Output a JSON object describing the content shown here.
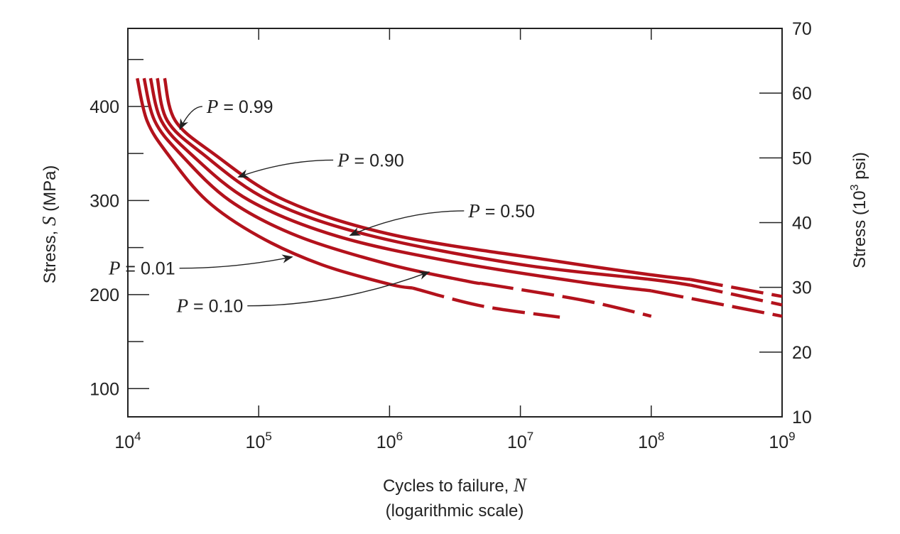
{
  "chart_data": {
    "type": "line",
    "title": "",
    "xlabel": "Cycles to failure, ",
    "xlabel_var": "N",
    "xlabel_note": "(logarithmic scale)",
    "ylabel": "Stress, ",
    "ylabel_var": "S",
    "ylabel_unit": " (MPa)",
    "y2label": "Stress (10",
    "y2label_exp": "3",
    "y2label_unit": " psi)",
    "xscale": "log",
    "xlim": [
      10000,
      1000000000
    ],
    "ylim": [
      70,
      483
    ],
    "y2lim": [
      10,
      70
    ],
    "x_ticks": [
      {
        "base": "10",
        "exp": "4",
        "value": 10000
      },
      {
        "base": "10",
        "exp": "5",
        "value": 100000
      },
      {
        "base": "10",
        "exp": "6",
        "value": 1000000
      },
      {
        "base": "10",
        "exp": "7",
        "value": 10000000
      },
      {
        "base": "10",
        "exp": "8",
        "value": 100000000
      },
      {
        "base": "10",
        "exp": "9",
        "value": 1000000000
      }
    ],
    "y_ticks": [
      "100",
      "200",
      "300",
      "400"
    ],
    "y_tick_values": [
      100,
      200,
      300,
      400
    ],
    "y_minor_ticks": [
      150,
      250,
      350,
      450
    ],
    "y2_ticks": [
      "10",
      "20",
      "30",
      "40",
      "50",
      "60",
      "70"
    ],
    "y2_tick_values": [
      10,
      20,
      30,
      40,
      50,
      60,
      70
    ],
    "series_color": "#b3121c",
    "series": [
      {
        "name": "P = 0.01",
        "prob": "0.01",
        "points": [
          [
            11800,
            430
          ],
          [
            14000,
            385
          ],
          [
            20000,
            350
          ],
          [
            40000,
            300
          ],
          [
            100000,
            262
          ],
          [
            300000,
            232
          ],
          [
            1000000,
            211
          ],
          [
            1500000,
            207
          ]
        ],
        "dashed": [
          [
            1500000,
            207
          ],
          [
            5000000,
            188
          ],
          [
            20000000,
            176
          ]
        ]
      },
      {
        "name": "P = 0.10",
        "prob": "0.10",
        "points": [
          [
            13300,
            430
          ],
          [
            16000,
            385
          ],
          [
            25000,
            350
          ],
          [
            60000,
            300
          ],
          [
            200000,
            262
          ],
          [
            1000000,
            232
          ],
          [
            4000000,
            214
          ],
          [
            5000000,
            212
          ]
        ],
        "dashed": [
          [
            5000000,
            212
          ],
          [
            30000000,
            194
          ],
          [
            100000000,
            177
          ]
        ]
      },
      {
        "name": "P = 0.50",
        "prob": "0.50",
        "points": [
          [
            14900,
            430
          ],
          [
            18000,
            385
          ],
          [
            30000,
            350
          ],
          [
            85000,
            300
          ],
          [
            400000,
            262
          ],
          [
            3000000,
            235
          ],
          [
            30000000,
            213
          ],
          [
            100000000,
            204
          ]
        ],
        "dashed": [
          [
            100000000,
            204
          ],
          [
            1000000000,
            177
          ]
        ]
      },
      {
        "name": "P = 0.90",
        "prob": "0.90",
        "points": [
          [
            16800,
            430
          ],
          [
            20000,
            385
          ],
          [
            37000,
            350
          ],
          [
            120000,
            300
          ],
          [
            700000,
            263
          ],
          [
            10000000,
            232
          ],
          [
            100000000,
            216
          ],
          [
            200000000,
            210
          ]
        ],
        "dashed": [
          [
            200000000,
            210
          ],
          [
            1000000000,
            189
          ]
        ]
      },
      {
        "name": "P = 0.99",
        "prob": "0.99",
        "points": [
          [
            19100,
            430
          ],
          [
            23000,
            385
          ],
          [
            45000,
            350
          ],
          [
            160000,
            300
          ],
          [
            1100000,
            263
          ],
          [
            20000000,
            235
          ],
          [
            100000000,
            221
          ],
          [
            200000000,
            216
          ]
        ],
        "dashed": [
          [
            200000000,
            216
          ],
          [
            1000000000,
            198
          ]
        ]
      }
    ],
    "annotations": [
      {
        "series": "P = 0.99",
        "text_var": "P",
        "text": " = 0.99",
        "text_x": 40000,
        "text_y": 400,
        "point_x": 25000,
        "point_y": 376
      },
      {
        "series": "P = 0.90",
        "text_var": "P",
        "text": " = 0.90",
        "text_x": 400000,
        "text_y": 343,
        "point_x": 70000,
        "point_y": 325
      },
      {
        "series": "P = 0.50",
        "text_var": "P",
        "text": " = 0.50",
        "text_x": 4000000,
        "text_y": 289,
        "point_x": 500000,
        "point_y": 263
      },
      {
        "series": "P = 0.01",
        "text_var": "P",
        "text": " = 0.01",
        "text_x": 23000,
        "text_y": 228,
        "point_x": 180000,
        "point_y": 240
      },
      {
        "series": "P = 0.10",
        "text_var": "P",
        "text": " = 0.10",
        "text_x": 76000,
        "text_y": 188,
        "point_x": 2000000,
        "point_y": 224
      }
    ]
  }
}
